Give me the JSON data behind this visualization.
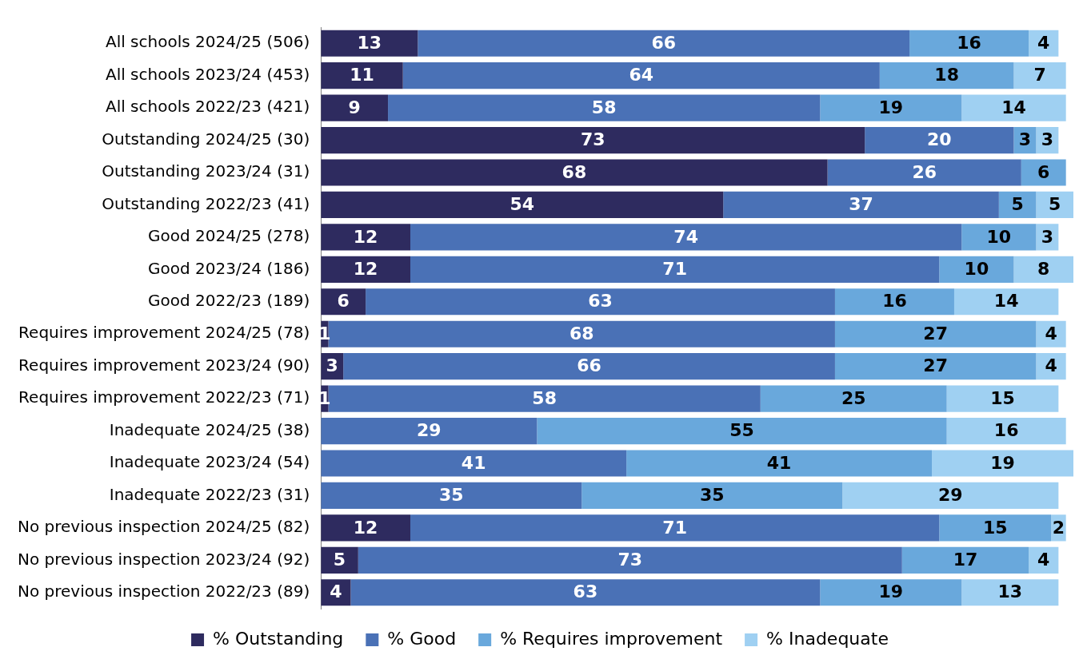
{
  "chart_data": {
    "type": "bar",
    "orientation": "horizontal",
    "stacked": true,
    "data_labels": true,
    "legend": "bottom",
    "categories": [
      "All schools 2024/25 (506)",
      "All schools 2023/24 (453)",
      "All schools 2022/23 (421)",
      "Outstanding 2024/25 (30)",
      "Outstanding 2023/24 (31)",
      "Outstanding 2022/23 (41)",
      "Good 2024/25 (278)",
      "Good 2023/24 (186)",
      "Good 2022/23 (189)",
      "Requires improvement 2024/25 (78)",
      "Requires improvement 2023/24 (90)",
      "Requires improvement 2022/23 (71)",
      "Inadequate 2024/25 (38)",
      "Inadequate 2023/24 (54)",
      "Inadequate 2022/23 (31)",
      "No previous inspection 2024/25 (82)",
      "No previous inspection 2023/24 (92)",
      "No previous inspection 2022/23 (89)"
    ],
    "series": [
      {
        "name": "% Outstanding",
        "color": "#2e2b5f",
        "values": [
          13,
          11,
          9,
          73,
          68,
          54,
          12,
          12,
          6,
          1,
          3,
          1,
          null,
          null,
          null,
          12,
          5,
          4
        ]
      },
      {
        "name": "% Good",
        "color": "#4a71b6",
        "values": [
          66,
          64,
          58,
          20,
          26,
          37,
          74,
          71,
          63,
          68,
          66,
          58,
          29,
          41,
          35,
          71,
          73,
          63
        ]
      },
      {
        "name": "% Requires improvement",
        "color": "#69a8dc",
        "values": [
          16,
          18,
          19,
          3,
          6,
          5,
          10,
          10,
          16,
          27,
          27,
          25,
          55,
          41,
          35,
          15,
          17,
          19
        ]
      },
      {
        "name": "% Inadequate",
        "color": "#9fd0f2",
        "values": [
          4,
          7,
          14,
          3,
          null,
          5,
          3,
          8,
          14,
          4,
          4,
          15,
          16,
          19,
          29,
          2,
          4,
          13
        ]
      }
    ]
  }
}
